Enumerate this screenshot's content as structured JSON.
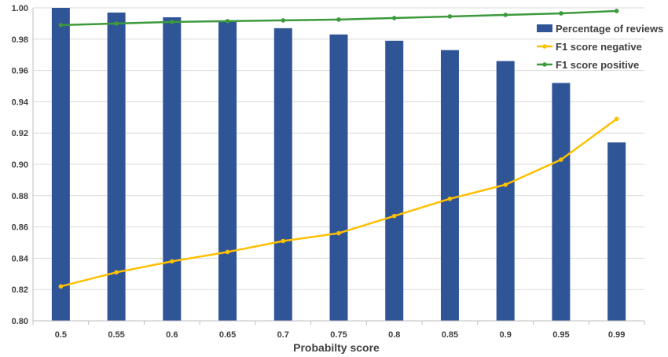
{
  "chart_data": {
    "type": "bar",
    "categories": [
      "0.5",
      "0.55",
      "0.6",
      "0.65",
      "0.7",
      "0.75",
      "0.8",
      "0.85",
      "0.9",
      "0.95",
      "0.99"
    ],
    "series": [
      {
        "name": "Percentage of reviews",
        "kind": "bar",
        "color": "#2F5597",
        "values": [
          1.0,
          0.997,
          0.994,
          0.991,
          0.987,
          0.983,
          0.979,
          0.973,
          0.966,
          0.952,
          0.914
        ]
      },
      {
        "name": "F1 score negative",
        "kind": "line",
        "color": "#FFC000",
        "values": [
          0.822,
          0.831,
          0.838,
          0.844,
          0.851,
          0.856,
          0.867,
          0.878,
          0.887,
          0.903,
          0.929
        ]
      },
      {
        "name": "F1 score positive",
        "kind": "line",
        "color": "#3C9A3C",
        "values": [
          0.989,
          0.99,
          0.991,
          0.9915,
          0.992,
          0.9925,
          0.9935,
          0.9945,
          0.9955,
          0.9965,
          0.998
        ]
      }
    ],
    "title": "",
    "xlabel": "Probabilty score",
    "ylabel": "",
    "ylim": [
      0.8,
      1.0
    ],
    "yticks": [
      "0.80",
      "0.82",
      "0.84",
      "0.86",
      "0.88",
      "0.90",
      "0.92",
      "0.94",
      "0.96",
      "0.98",
      "1.00"
    ],
    "grid": true,
    "legend_position": "top-right"
  }
}
